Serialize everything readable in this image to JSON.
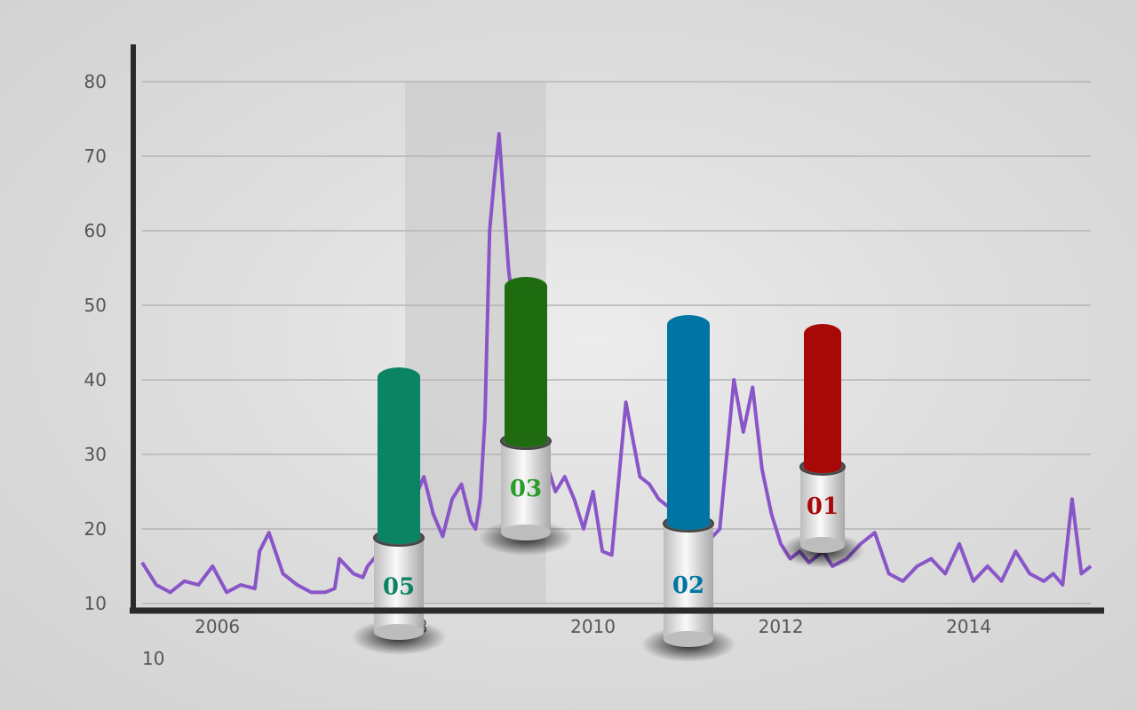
{
  "colors": {
    "line": "#8a55c8",
    "grid": "#b4b4b4",
    "axis": "#2a2a2a",
    "shade": "#c8c8c8"
  },
  "chart_data": {
    "type": "line",
    "title": "",
    "xlabel": "",
    "ylabel": "",
    "xlim": [
      2005.2,
      2015.3
    ],
    "ylim": [
      10,
      80
    ],
    "yticks": [
      10,
      20,
      30,
      40,
      50,
      60,
      70,
      80
    ],
    "xticks": [
      2006,
      2008,
      2010,
      2012,
      2014
    ],
    "grid": true,
    "shaded_period": [
      2008.0,
      2009.5
    ],
    "series": [
      {
        "x": [
          2005.2,
          2005.35,
          2005.5,
          2005.65,
          2005.8,
          2005.95,
          2006.1,
          2006.25,
          2006.4,
          2006.45,
          2006.55,
          2006.7,
          2006.85,
          2007.0,
          2007.15,
          2007.25,
          2007.3,
          2007.45,
          2007.55,
          2007.6,
          2007.7,
          2007.8,
          2007.9,
          2008.0,
          2008.1,
          2008.2,
          2008.3,
          2008.4,
          2008.5,
          2008.6,
          2008.7,
          2008.75,
          2008.8,
          2008.85,
          2008.9,
          2008.95,
          2009.0,
          2009.1,
          2009.2,
          2009.3,
          2009.4,
          2009.5,
          2009.6,
          2009.7,
          2009.8,
          2009.9,
          2010.0,
          2010.1,
          2010.2,
          2010.35,
          2010.5,
          2010.6,
          2010.7,
          2010.8,
          2010.9,
          2011.0,
          2011.1,
          2011.2,
          2011.35,
          2011.5,
          2011.6,
          2011.7,
          2011.8,
          2011.9,
          2012.0,
          2012.1,
          2012.2,
          2012.3,
          2012.45,
          2012.55,
          2012.7,
          2012.85,
          2013.0,
          2013.15,
          2013.3,
          2013.45,
          2013.6,
          2013.75,
          2013.9,
          2014.05,
          2014.2,
          2014.35,
          2014.5,
          2014.65,
          2014.8,
          2014.9,
          2015.0,
          2015.1,
          2015.2,
          2015.3
        ],
        "values": [
          15.5,
          12.5,
          11.5,
          13,
          12.5,
          15,
          11.5,
          12.5,
          12,
          17,
          19.5,
          14,
          12.5,
          11.5,
          11.5,
          12,
          16,
          14,
          13.5,
          15,
          16.5,
          22,
          28,
          21,
          24,
          27,
          22,
          19,
          24,
          26,
          21,
          20,
          24,
          35,
          60,
          67,
          73,
          55,
          44,
          42,
          49,
          29,
          25,
          27,
          24,
          20,
          25,
          17,
          16.5,
          37,
          27,
          26,
          24,
          23,
          21,
          16,
          16,
          18,
          20,
          40,
          33,
          39,
          28,
          22,
          18,
          16,
          17,
          15.5,
          17,
          15,
          16,
          18,
          19.5,
          14,
          13,
          15,
          16,
          14,
          18,
          13,
          15,
          13,
          17,
          14,
          13,
          14,
          12.5,
          24,
          14,
          15
        ]
      }
    ],
    "markers": [
      {
        "label": "05",
        "value": 40,
        "x": 2008.1,
        "color": "#0b8464"
      },
      {
        "label": "03",
        "value": 53,
        "x": 2009.5,
        "color": "#1f6b10"
      },
      {
        "label": "02",
        "value": 48,
        "x": 2010.75,
        "color": "#0074a2"
      },
      {
        "label": "01",
        "value": 46,
        "x": 2012.1,
        "color": "#a80808"
      }
    ],
    "extra_label": "10"
  },
  "label_colors": {
    "05": "#0b8464",
    "03": "#2a9c2a",
    "02": "#0074a2",
    "01": "#a80808"
  }
}
